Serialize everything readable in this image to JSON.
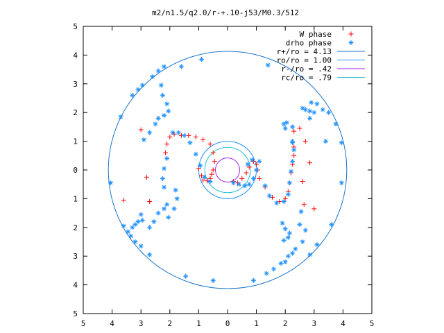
{
  "chart_data": {
    "type": "scatter",
    "title": "m2/n1.5/q2.0/r-+.10-j53/M0.3/512",
    "xlabel": "",
    "ylabel": "",
    "xlim": [
      -5,
      5
    ],
    "ylim": [
      -5,
      5
    ],
    "x_tick_labels": [
      "5",
      "4",
      "3",
      "2",
      "1",
      "0",
      "1",
      "2",
      "3",
      "4",
      "5"
    ],
    "y_tick_labels": [
      "5",
      "4",
      "3",
      "2",
      "1",
      "0",
      "1",
      "2",
      "3",
      "4",
      "5"
    ],
    "grid": false,
    "legend_position": "top-right",
    "colors": {
      "w_phase": "#ff0000",
      "drho_phase": "#1e90ff",
      "r_plus": "#1874cd",
      "r_o": "#1e90ff",
      "r_minus": "#a020f0",
      "r_c": "#20c0d0",
      "axes": "#000000"
    },
    "legend": [
      {
        "label": "W phase",
        "kind": "plus",
        "color_key": "w_phase"
      },
      {
        "label": "drho phase",
        "kind": "star",
        "color_key": "drho_phase"
      },
      {
        "label": "r+/ro = 4.13",
        "kind": "line",
        "color_key": "r_plus"
      },
      {
        "label": "ro/ro = 1.00",
        "kind": "line",
        "color_key": "r_o"
      },
      {
        "label": "r-/ro =  .42",
        "kind": "line",
        "color_key": "r_minus"
      },
      {
        "label": "rc/ro =  .79",
        "kind": "line",
        "color_key": "r_c"
      }
    ],
    "circles": [
      {
        "name": "r+",
        "radius": 4.13,
        "color_key": "r_plus"
      },
      {
        "name": "ro",
        "radius": 1.0,
        "color_key": "r_o"
      },
      {
        "name": "r-",
        "radius": 0.42,
        "color_key": "r_minus"
      },
      {
        "name": "rc",
        "radius": 0.79,
        "color_key": "r_c"
      }
    ],
    "series": [
      {
        "name": "W phase",
        "marker": "plus",
        "points": [
          [
            -1.0,
            0.05
          ],
          [
            -0.9,
            -0.2
          ],
          [
            -0.85,
            -0.35
          ],
          [
            -0.7,
            -0.38
          ],
          [
            -0.6,
            -0.3
          ],
          [
            -0.55,
            -0.15
          ],
          [
            -0.5,
            0.0
          ],
          [
            -0.45,
            0.3
          ],
          [
            -0.5,
            0.6
          ],
          [
            -0.6,
            0.9
          ],
          [
            -0.85,
            1.05
          ],
          [
            -1.1,
            1.15
          ],
          [
            -1.35,
            1.2
          ],
          [
            -1.6,
            1.2
          ],
          [
            -1.85,
            1.25
          ],
          [
            -2.0,
            1.15
          ],
          [
            -2.1,
            0.9
          ],
          [
            -2.15,
            0.6
          ],
          [
            0.2,
            -0.4
          ],
          [
            0.35,
            -0.45
          ],
          [
            0.5,
            -0.3
          ],
          [
            0.65,
            -0.1
          ],
          [
            0.75,
            0.1
          ],
          [
            0.9,
            0.3
          ],
          [
            1.0,
            0.2
          ],
          [
            1.05,
            0.0
          ],
          [
            1.1,
            -0.3
          ],
          [
            1.3,
            -0.6
          ],
          [
            1.55,
            -0.95
          ],
          [
            1.8,
            -1.1
          ],
          [
            2.0,
            -1.0
          ],
          [
            2.1,
            -0.75
          ],
          [
            2.15,
            -0.45
          ],
          [
            2.2,
            -0.1
          ],
          [
            2.25,
            0.2
          ],
          [
            2.3,
            0.5
          ],
          [
            2.3,
            0.8
          ],
          [
            -3.0,
            1.4
          ],
          [
            -2.8,
            -0.25
          ],
          [
            -2.7,
            -1.1
          ],
          [
            -3.6,
            -1.05
          ],
          [
            2.5,
            1.45
          ],
          [
            2.3,
            1.35
          ],
          [
            2.7,
            1.0
          ],
          [
            2.85,
            0.25
          ],
          [
            2.6,
            -0.4
          ],
          [
            2.65,
            -1.2
          ],
          [
            3.0,
            -1.35
          ]
        ]
      },
      {
        "name": "drho phase",
        "marker": "star",
        "points": [
          [
            -4.05,
            -0.45
          ],
          [
            -3.7,
            1.85
          ],
          [
            -3.3,
            2.6
          ],
          [
            -3.1,
            2.8
          ],
          [
            -2.95,
            2.95
          ],
          [
            -2.6,
            3.25
          ],
          [
            -2.4,
            3.45
          ],
          [
            -2.2,
            3.6
          ],
          [
            -1.6,
            3.6
          ],
          [
            -0.9,
            3.85
          ],
          [
            -2.3,
            2.95
          ],
          [
            -2.25,
            2.6
          ],
          [
            -2.1,
            2.3
          ],
          [
            -2.05,
            2.05
          ],
          [
            -2.2,
            1.9
          ],
          [
            -2.4,
            1.8
          ],
          [
            -2.5,
            1.6
          ],
          [
            -2.7,
            1.3
          ],
          [
            -2.9,
            1.05
          ],
          [
            -3.0,
            -1.55
          ],
          [
            -2.95,
            -1.75
          ],
          [
            -3.1,
            -1.8
          ],
          [
            -3.2,
            -1.9
          ],
          [
            -3.3,
            -2.0
          ],
          [
            -2.7,
            -2.0
          ],
          [
            -2.55,
            -1.8
          ],
          [
            -2.4,
            -1.5
          ],
          [
            -2.2,
            -1.35
          ],
          [
            -2.1,
            -1.2
          ],
          [
            -3.6,
            -1.95
          ],
          [
            -3.45,
            -2.15
          ],
          [
            -3.35,
            -2.3
          ],
          [
            -3.2,
            -2.5
          ],
          [
            -3.0,
            -2.65
          ],
          [
            -2.7,
            -2.95
          ],
          [
            -1.45,
            -3.7
          ],
          [
            -0.5,
            -3.85
          ],
          [
            -1.9,
            1.3
          ],
          [
            -1.7,
            1.3
          ],
          [
            -1.5,
            1.2
          ],
          [
            -1.3,
            0.95
          ],
          [
            -1.1,
            0.55
          ],
          [
            -0.95,
            0.15
          ],
          [
            -0.8,
            -0.25
          ],
          [
            -0.6,
            -0.4
          ],
          [
            -2.05,
            -1.65
          ],
          [
            -1.85,
            -1.35
          ],
          [
            -1.75,
            -1.0
          ],
          [
            -1.8,
            -0.7
          ],
          [
            -2.1,
            0.4
          ],
          [
            -2.2,
            0.05
          ],
          [
            -2.25,
            -0.3
          ],
          [
            -2.2,
            -0.6
          ],
          [
            0.2,
            -0.45
          ],
          [
            0.4,
            -0.5
          ],
          [
            0.6,
            -0.55
          ],
          [
            0.75,
            -0.5
          ],
          [
            0.9,
            -0.3
          ],
          [
            1.0,
            0.0
          ],
          [
            1.1,
            0.3
          ],
          [
            0.85,
            0.35
          ],
          [
            0.7,
            0.2
          ],
          [
            1.3,
            -0.55
          ],
          [
            1.45,
            -0.9
          ],
          [
            1.7,
            -1.15
          ],
          [
            1.95,
            -1.1
          ],
          [
            2.1,
            -0.85
          ],
          [
            2.15,
            -0.45
          ],
          [
            2.2,
            -0.05
          ],
          [
            2.25,
            0.3
          ],
          [
            2.3,
            0.7
          ],
          [
            2.25,
            1.0
          ],
          [
            2.0,
            1.45
          ],
          [
            1.95,
            1.6
          ],
          [
            2.05,
            1.65
          ],
          [
            2.25,
            1.5
          ],
          [
            1.9,
            -1.85
          ],
          [
            2.0,
            -2.05
          ],
          [
            2.15,
            -2.2
          ],
          [
            2.1,
            -2.35
          ],
          [
            1.95,
            -2.45
          ],
          [
            1.85,
            -3.25
          ],
          [
            2.0,
            -3.2
          ],
          [
            2.1,
            -3.0
          ],
          [
            2.25,
            -2.9
          ],
          [
            2.35,
            -2.75
          ],
          [
            0.9,
            -3.85
          ],
          [
            1.35,
            -3.6
          ],
          [
            1.6,
            -3.45
          ],
          [
            2.6,
            -2.5
          ],
          [
            2.85,
            -2.95
          ],
          [
            3.1,
            -2.6
          ],
          [
            3.6,
            -1.9
          ],
          [
            3.95,
            -0.45
          ],
          [
            3.95,
            0.95
          ],
          [
            3.75,
            1.6
          ],
          [
            3.5,
            2.0
          ],
          [
            3.0,
            2.0
          ],
          [
            2.85,
            2.05
          ],
          [
            2.7,
            2.1
          ],
          [
            2.6,
            2.15
          ],
          [
            2.9,
            2.35
          ],
          [
            3.1,
            2.3
          ],
          [
            3.3,
            2.1
          ],
          [
            2.85,
            1.8
          ],
          [
            3.4,
            1.0
          ],
          [
            2.25,
            0.95
          ],
          [
            2.5,
            -1.9
          ],
          [
            2.55,
            -1.45
          ],
          [
            2.7,
            -2.1
          ],
          [
            1.4,
            3.65
          ]
        ]
      }
    ]
  }
}
